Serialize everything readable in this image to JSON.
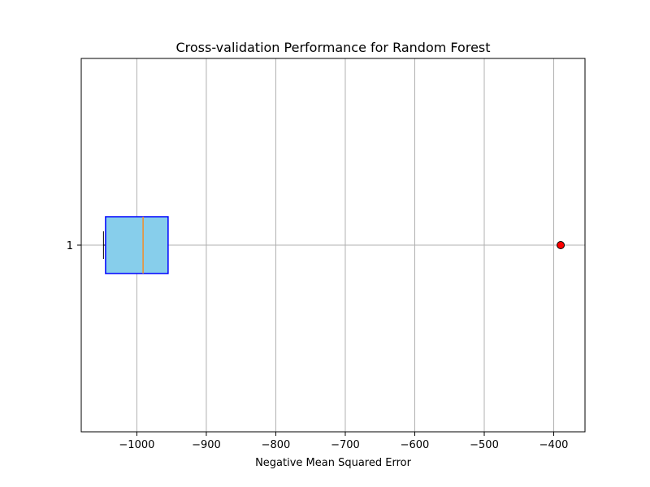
{
  "chart_data": {
    "type": "box",
    "orientation": "horizontal",
    "title": "Cross-validation Performance for Random Forest",
    "xlabel": "Negative Mean Squared Error",
    "ylabel": "",
    "xlim": [
      -1080,
      -355
    ],
    "x_ticks": [
      -1000,
      -900,
      -800,
      -700,
      -600,
      -500,
      -400
    ],
    "x_tick_labels": [
      "−1000",
      "−900",
      "−800",
      "−700",
      "−600",
      "−500",
      "−400"
    ],
    "y_ticks": [
      1
    ],
    "y_tick_labels": [
      "1"
    ],
    "grid": true,
    "boxes": [
      {
        "position": 1,
        "whisker_low": -1048,
        "q1": -1045,
        "median": -991,
        "q3": -955,
        "whisker_high": -955,
        "outliers": [
          -390
        ]
      }
    ],
    "colors": {
      "box_fill": "#87ceeb",
      "box_edge": "#0000ff",
      "median_line": "#f28e2b",
      "whisker": "#000000",
      "outlier_fill": "#ff0000",
      "outlier_edge": "#000000",
      "grid": "#b0b0b0"
    }
  }
}
